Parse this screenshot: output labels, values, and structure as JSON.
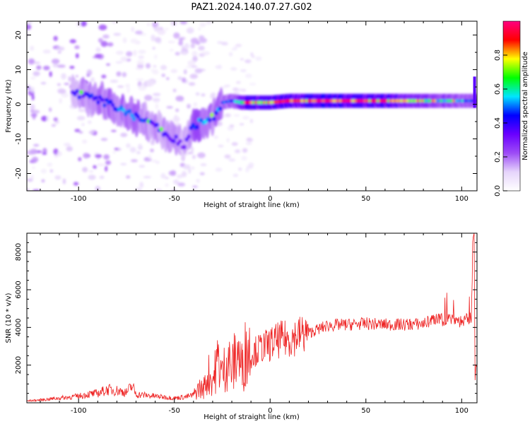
{
  "figure": {
    "title": "PAZ1.2024.140.07.27.G02"
  },
  "chart_data": [
    {
      "type": "heatmap",
      "title": "",
      "xlabel": "Height of straight line (km)",
      "ylabel": "Frequency (Hz)",
      "xlim": [
        -127,
        108
      ],
      "ylim": [
        -25,
        24
      ],
      "xticks": [
        -100,
        -50,
        0,
        50,
        100
      ],
      "yticks": [
        -20,
        -10,
        0,
        10,
        20
      ],
      "grid": false,
      "colorbar": {
        "label": "Normalized spectral amplitude",
        "range": [
          0,
          1
        ],
        "ticks": [
          "0.0",
          "0.2",
          "0.4",
          "0.6",
          "0.8"
        ],
        "colormap": [
          "#ffffff",
          "#e6d4fb",
          "#9d4cf6",
          "#6a00ff",
          "#0000ff",
          "#00e5ff",
          "#00ff00",
          "#ffff00",
          "#ff0000",
          "#ff0080"
        ]
      },
      "ridge": {
        "description_free": true,
        "x": [
          -102,
          -95,
          -88,
          -80,
          -72,
          -65,
          -58,
          -50,
          -45,
          -40,
          -35,
          -30,
          -25,
          -20,
          -15,
          -10,
          -5,
          0,
          10,
          20,
          40,
          60,
          80,
          100,
          105
        ],
        "y": [
          3,
          2,
          1,
          -1,
          -3,
          -5,
          -7,
          -10,
          -12,
          -6,
          -5,
          -4,
          0.5,
          1,
          0.5,
          0.5,
          0.5,
          0.5,
          1,
          1,
          1,
          1,
          1,
          1,
          1
        ],
        "amplitude": [
          0.35,
          0.4,
          0.4,
          0.45,
          0.45,
          0.4,
          0.35,
          0.35,
          0.3,
          0.45,
          0.5,
          0.45,
          0.45,
          0.5,
          0.7,
          0.85,
          0.75,
          0.85,
          0.8,
          0.85,
          0.85,
          0.8,
          0.6,
          0.5,
          0.45
        ]
      }
    },
    {
      "type": "line",
      "title": "",
      "xlabel": "Height of straight line (km)",
      "ylabel": "SNR (10 * v/v)",
      "xlim": [
        -127,
        108
      ],
      "ylim": [
        0,
        9000
      ],
      "xticks": [
        -100,
        -50,
        0,
        50,
        100
      ],
      "yticks": [
        2000,
        4000,
        6000,
        8000
      ],
      "grid": false,
      "series": [
        {
          "color": "#ee2222",
          "x": [
            -127,
            -120,
            -110,
            -100,
            -95,
            -90,
            -85,
            -80,
            -75,
            -72,
            -70,
            -65,
            -60,
            -55,
            -50,
            -45,
            -40,
            -37,
            -35,
            -32,
            -30,
            -27,
            -25,
            -22,
            -20,
            -17,
            -15,
            -12,
            -10,
            -5,
            0,
            5,
            10,
            15,
            20,
            25,
            30,
            40,
            50,
            60,
            70,
            80,
            85,
            90,
            95,
            100,
            103,
            105,
            106,
            107,
            108
          ],
          "y": [
            100,
            150,
            250,
            350,
            450,
            500,
            700,
            650,
            550,
            900,
            450,
            400,
            350,
            300,
            250,
            300,
            400,
            800,
            700,
            1500,
            1200,
            2300,
            1500,
            2400,
            1700,
            2800,
            1800,
            3000,
            2600,
            2900,
            3100,
            3350,
            3400,
            3600,
            3700,
            3900,
            4100,
            4150,
            4200,
            4150,
            4150,
            4200,
            4400,
            4400,
            4500,
            4300,
            4400,
            4500,
            8800,
            2000,
            1800
          ]
        }
      ]
    }
  ]
}
